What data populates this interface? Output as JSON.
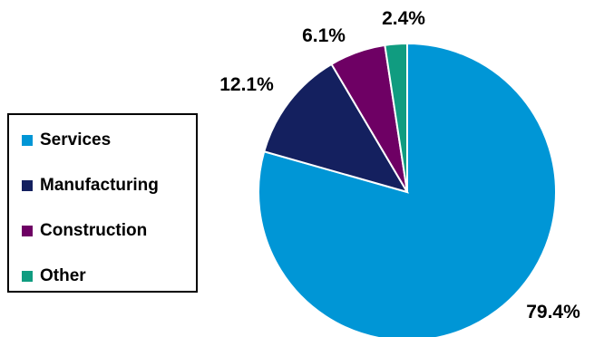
{
  "chart_data": {
    "type": "pie",
    "categories": [
      "Services",
      "Manufacturing",
      "Construction",
      "Other"
    ],
    "values": [
      79.4,
      12.1,
      6.1,
      2.4
    ],
    "labels": [
      "79.4%",
      "12.1%",
      "6.1%",
      "2.4%"
    ],
    "colors": [
      "#0096D6",
      "#14205F",
      "#6E0064",
      "#109C80"
    ],
    "start_angle_deg": 0,
    "direction": "clockwise",
    "legend_placement": "left",
    "grid": false
  }
}
